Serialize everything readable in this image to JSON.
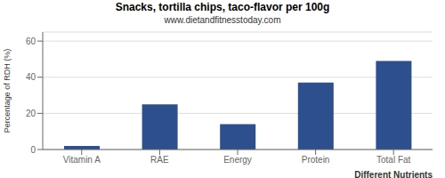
{
  "chart_data": {
    "type": "bar",
    "title": "Snacks, tortilla chips, taco-flavor per 100g",
    "subtitle": "www.dietandfitnesstoday.com",
    "categories": [
      "Vitamin A",
      "RAE",
      "Energy",
      "Protein",
      "Total Fat"
    ],
    "values": [
      2,
      25,
      14,
      37,
      49
    ],
    "color": "#2d4f8e",
    "xlabel": "Different Nutrients",
    "ylabel": "Percentage of RDH (%)",
    "ylim": [
      0,
      65
    ],
    "yticks": [
      0,
      20,
      40,
      60
    ],
    "grid": true
  }
}
